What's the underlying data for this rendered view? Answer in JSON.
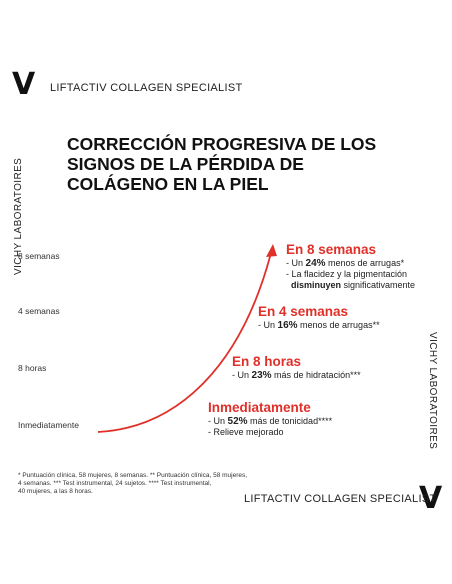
{
  "brand": {
    "logo": "V",
    "line_top": "LIFTACTIV COLLAGEN SPECIALIST",
    "line_bottom": "LIFTACTIV COLLAGEN SPECIALIST",
    "side_left": "VICHY LABORATOIRES",
    "side_right": "VICHY LABORATOIRES"
  },
  "title": {
    "line1": "CORRECCIÓN PROGRESIVA DE LOS",
    "line2": "SIGNOS DE LA PÉRDIDA DE",
    "line3": "COLÁGENO EN LA PIEL"
  },
  "timeline_labels": [
    "8 semanas",
    "4 semanas",
    "8 horas",
    "Inmediatamente"
  ],
  "blocks": {
    "w8": {
      "heading": "En 8 semanas",
      "l1_pre": "- Un ",
      "l1_bold": "24%",
      "l1_post": " menos de arrugas*",
      "l2": "- La flacidez y la pigmentación",
      "l3_bold": "disminuyen",
      "l3_post": " significativamente"
    },
    "w4": {
      "heading": "En 4 semanas",
      "l1_pre": "- Un ",
      "l1_bold": "16%",
      "l1_post": " menos de arrugas**"
    },
    "h8": {
      "heading": "En 8 horas",
      "l1_pre": "- Un ",
      "l1_bold": "23%",
      "l1_post": " más de hidratación***"
    },
    "imm": {
      "heading": "Inmediatamente",
      "l1_pre": "- Un ",
      "l1_bold": "52%",
      "l1_post": " más de tonicidad****",
      "l2": "- Relieve mejorado"
    }
  },
  "footnote": {
    "l1": "* Puntuación clínica, 58 mujeres, 8 semanas. ** Puntuación clínica, 58 mujeres,",
    "l2": "4 semanas. *** Test instrumental, 24 sujetos. **** Test instrumental,",
    "l3": "40 mujeres, a las 8 horas."
  },
  "colors": {
    "accent": "#e0302a",
    "text": "#1a1a1a"
  }
}
